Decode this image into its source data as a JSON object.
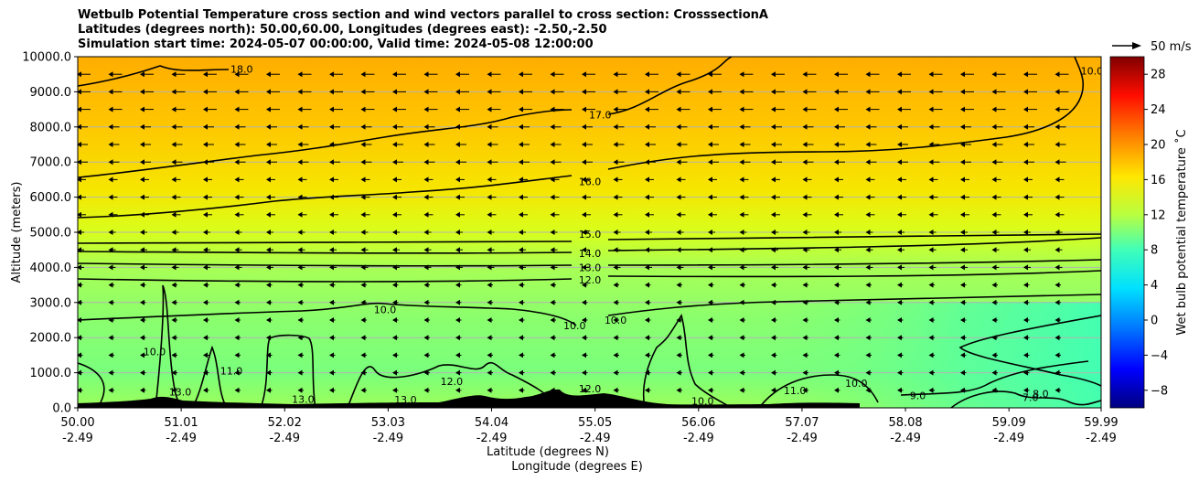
{
  "title": {
    "line1": "Wetbulb Potential Temperature cross section and wind vectors parallel to cross section: CrosssectionA",
    "line2": "Latitudes (degrees north): 50.00,60.00, Longitudes (degrees east): -2.50,-2.50",
    "line3": "Simulation start time: 2024-05-07 00:00:00, Valid time: 2024-05-08 12:00:00"
  },
  "chart_data": {
    "type": "heatmap",
    "subtype": "filled contour cross-section with contour lines and wind vectors",
    "ylabel": "Altitude (meters)",
    "xlabel_line1": "Latitude (degrees N)",
    "xlabel_line2": "Longitude (degrees E)",
    "ylim": [
      0,
      10000
    ],
    "y_ticks": [
      "0.0",
      "1000.0",
      "2000.0",
      "3000.0",
      "4000.0",
      "5000.0",
      "6000.0",
      "7000.0",
      "8000.0",
      "9000.0",
      "10000.0"
    ],
    "y_tick_values": [
      0,
      1000,
      2000,
      3000,
      4000,
      5000,
      6000,
      7000,
      8000,
      9000,
      10000
    ],
    "x_ticks": [
      {
        "lat": "50.00",
        "lon": "-2.49"
      },
      {
        "lat": "51.01",
        "lon": "-2.49"
      },
      {
        "lat": "52.02",
        "lon": "-2.49"
      },
      {
        "lat": "53.03",
        "lon": "-2.49"
      },
      {
        "lat": "54.04",
        "lon": "-2.49"
      },
      {
        "lat": "55.05",
        "lon": "-2.49"
      },
      {
        "lat": "56.06",
        "lon": "-2.49"
      },
      {
        "lat": "57.07",
        "lon": "-2.49"
      },
      {
        "lat": "58.08",
        "lon": "-2.49"
      },
      {
        "lat": "59.09",
        "lon": "-2.49"
      },
      {
        "lat": "59.99",
        "lon": "-2.49"
      }
    ],
    "x_range_lat": [
      50.0,
      59.99
    ],
    "grid": "horizontal",
    "colorbar": {
      "label": "Wet bulb potential temperature ˚C",
      "min": -10,
      "max": 30,
      "ticks": [
        "−8",
        "−4",
        "0",
        "4",
        "8",
        "12",
        "16",
        "20",
        "24",
        "28"
      ],
      "tick_values": [
        -8,
        -4,
        0,
        4,
        8,
        12,
        16,
        20,
        24,
        28
      ],
      "colormap": "jet"
    },
    "quiver_key": {
      "label": "50 m/s"
    },
    "contour_labels": [
      {
        "text": "18.0",
        "x_lat": 51.6,
        "alt": 9650
      },
      {
        "text": "17.0",
        "x_lat": 55.1,
        "alt": 8350
      },
      {
        "text": "16.0",
        "x_lat": 55.0,
        "alt": 6450
      },
      {
        "text": "15.0",
        "x_lat": 55.0,
        "alt": 4950
      },
      {
        "text": "14.0",
        "x_lat": 55.0,
        "alt": 4400
      },
      {
        "text": "13.0",
        "x_lat": 55.0,
        "alt": 4000
      },
      {
        "text": "12.0",
        "x_lat": 55.0,
        "alt": 3650
      },
      {
        "text": "10.0",
        "x_lat": 53.0,
        "alt": 2800
      },
      {
        "text": "10.0",
        "x_lat": 54.85,
        "alt": 2350
      },
      {
        "text": "10.0",
        "x_lat": 55.25,
        "alt": 2500
      },
      {
        "text": "10.0",
        "x_lat": 50.75,
        "alt": 1600
      },
      {
        "text": "11.0",
        "x_lat": 51.5,
        "alt": 1050
      },
      {
        "text": "12.0",
        "x_lat": 53.65,
        "alt": 750
      },
      {
        "text": "12.0",
        "x_lat": 55.0,
        "alt": 550
      },
      {
        "text": "13.0",
        "x_lat": 51.0,
        "alt": 450
      },
      {
        "text": "13.0",
        "x_lat": 53.2,
        "alt": 230
      },
      {
        "text": "13.0",
        "x_lat": 52.2,
        "alt": 250
      },
      {
        "text": "11.0",
        "x_lat": 57.0,
        "alt": 500
      },
      {
        "text": "10.0",
        "x_lat": 57.6,
        "alt": 700
      },
      {
        "text": "9.0",
        "x_lat": 58.2,
        "alt": 350
      },
      {
        "text": "10.0",
        "x_lat": 56.1,
        "alt": 200
      },
      {
        "text": "7.0",
        "x_lat": 59.3,
        "alt": 300
      },
      {
        "text": "8.0",
        "x_lat": 59.4,
        "alt": 400
      },
      {
        "text": "10.0",
        "x_lat": 59.9,
        "alt": 9600
      }
    ]
  }
}
